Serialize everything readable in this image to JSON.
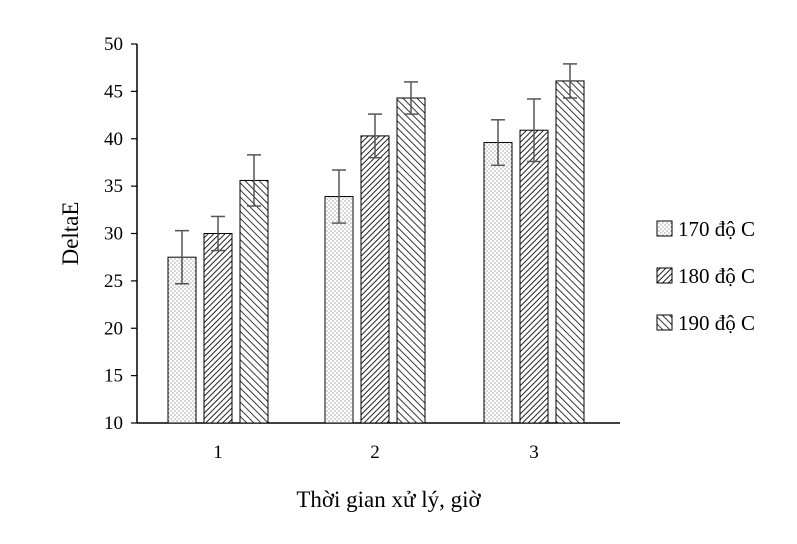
{
  "chart_data": {
    "type": "bar",
    "xlabel": "Thời gian xử lý, giờ",
    "ylabel": "DeltaE",
    "ylim": [
      10,
      50
    ],
    "yticks": [
      10,
      15,
      20,
      25,
      30,
      35,
      40,
      45,
      50
    ],
    "categories": [
      "1",
      "2",
      "3"
    ],
    "series": [
      {
        "name": "170 độ C",
        "values": [
          27.5,
          33.9,
          39.6
        ],
        "errors": [
          2.8,
          2.8,
          2.4
        ],
        "pattern": "dots"
      },
      {
        "name": "180 độ C",
        "values": [
          30.0,
          40.3,
          40.9
        ],
        "errors": [
          1.8,
          2.3,
          3.3
        ],
        "pattern": "dense-diagonal"
      },
      {
        "name": "190 độ C",
        "values": [
          35.6,
          44.3,
          46.1
        ],
        "errors": [
          2.7,
          1.7,
          1.8
        ],
        "pattern": "diagonal"
      }
    ],
    "grid": false,
    "legend_position": "right",
    "colors": {
      "bar_stroke": "#000000",
      "pattern_ink": "#333333",
      "error_bar": "#555555",
      "axis": "#000000"
    }
  }
}
